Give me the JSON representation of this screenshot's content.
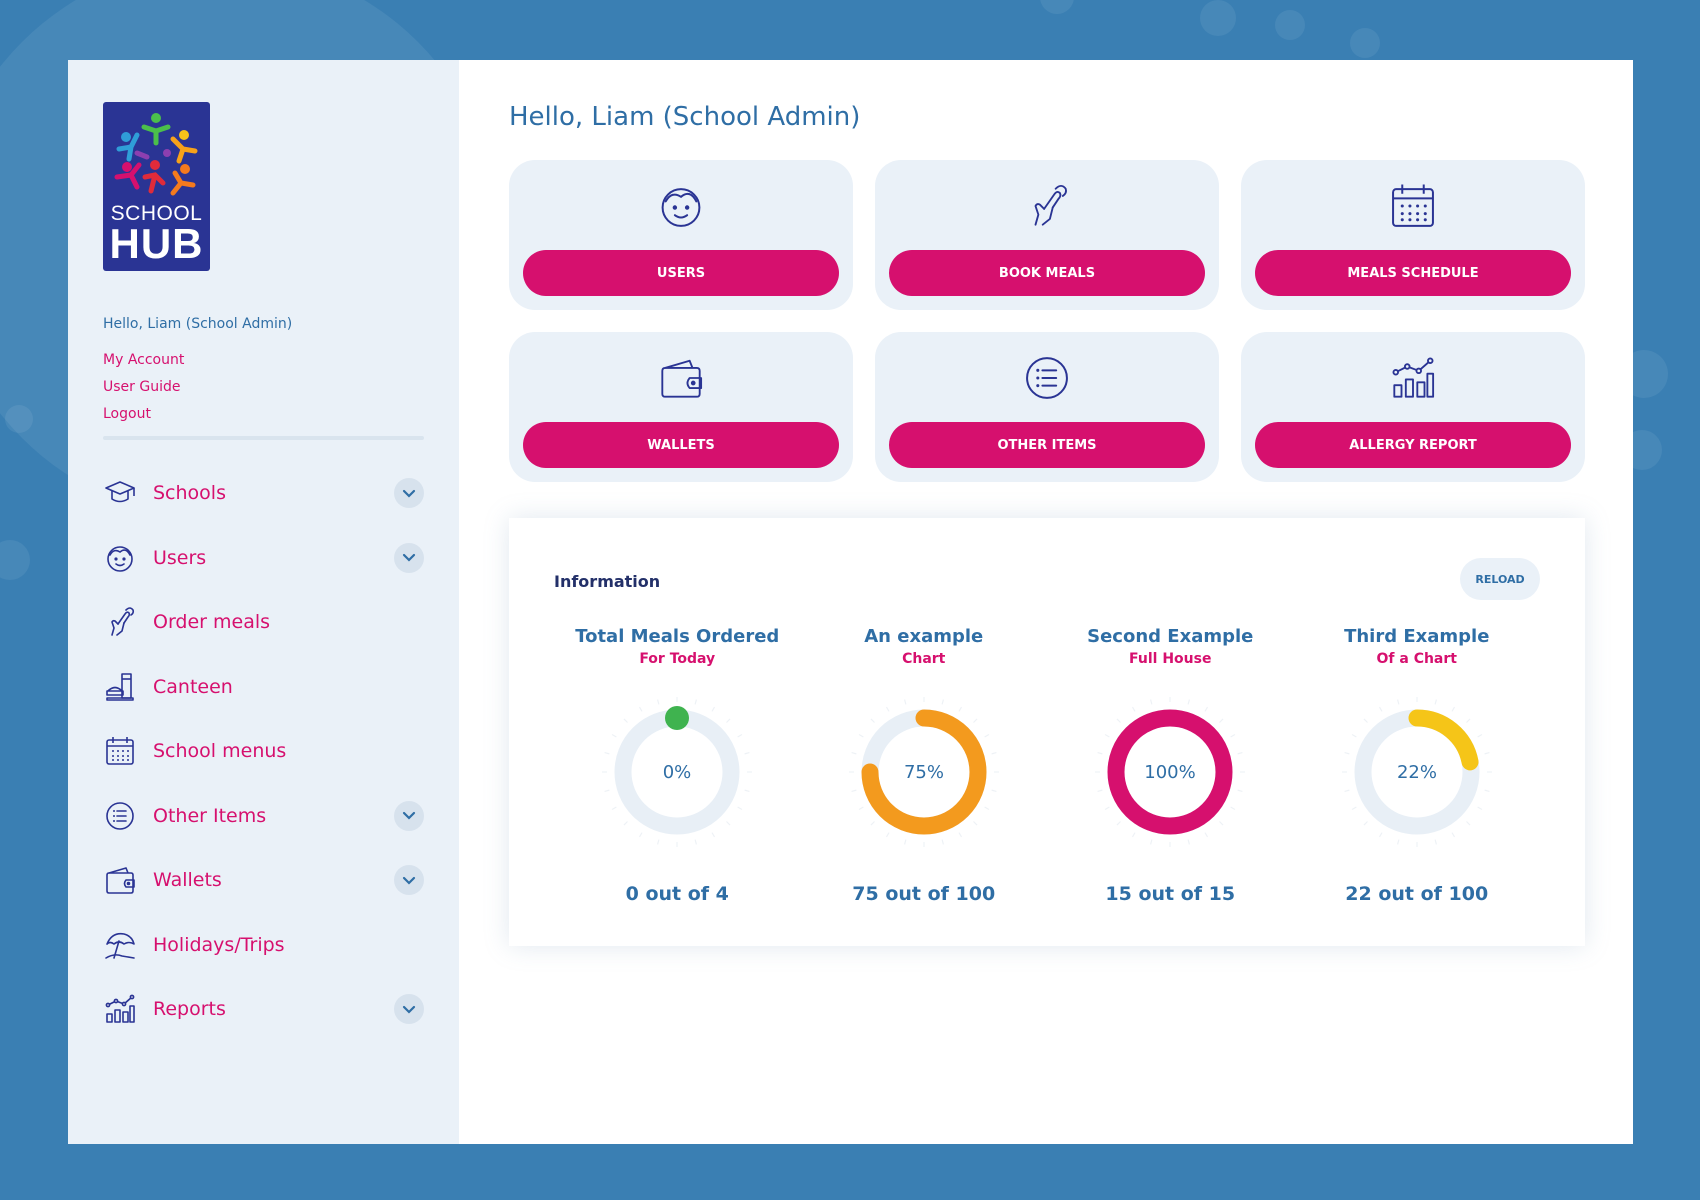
{
  "brand": {
    "logo_line1": "SCHOOL",
    "logo_line2": "HUB"
  },
  "sidebar": {
    "greeting": "Hello, Liam (School Admin)",
    "account_links": [
      {
        "label": "My Account"
      },
      {
        "label": "User Guide"
      },
      {
        "label": "Logout"
      }
    ],
    "nav": [
      {
        "label": "Schools",
        "icon": "graduation-cap-icon",
        "has_chevron": true
      },
      {
        "label": "Users",
        "icon": "user-face-icon",
        "has_chevron": true
      },
      {
        "label": "Order meals",
        "icon": "pointing-hand-icon",
        "has_chevron": false
      },
      {
        "label": "Canteen",
        "icon": "canteen-icon",
        "has_chevron": false
      },
      {
        "label": "School menus",
        "icon": "calendar-icon",
        "has_chevron": false
      },
      {
        "label": "Other Items",
        "icon": "list-icon",
        "has_chevron": true
      },
      {
        "label": "Wallets",
        "icon": "wallet-icon",
        "has_chevron": true
      },
      {
        "label": "Holidays/Trips",
        "icon": "beach-umbrella-icon",
        "has_chevron": false
      },
      {
        "label": "Reports",
        "icon": "bar-chart-icon",
        "has_chevron": true
      }
    ]
  },
  "main": {
    "title": "Hello, Liam (School Admin)",
    "tiles": [
      {
        "label": "USERS",
        "icon": "user-face-icon"
      },
      {
        "label": "BOOK MEALS",
        "icon": "pointing-hand-icon"
      },
      {
        "label": "MEALS SCHEDULE",
        "icon": "calendar-icon"
      },
      {
        "label": "WALLETS",
        "icon": "wallet-icon"
      },
      {
        "label": "OTHER ITEMS",
        "icon": "list-icon"
      },
      {
        "label": "ALLERGY REPORT",
        "icon": "bar-chart-icon"
      }
    ]
  },
  "info": {
    "title": "Information",
    "reload_label": "RELOAD"
  },
  "colors": {
    "accent": "#d6106e",
    "primary": "#2f6ea5",
    "navy": "#2a3494",
    "track": "#e8eff6"
  },
  "chart_data": [
    {
      "type": "pie",
      "title": "Total Meals Ordered",
      "subtitle": "For Today",
      "value": 0,
      "max": 4,
      "percent_label": "0%",
      "count_label": "0 out of 4",
      "color": "#3fb34f"
    },
    {
      "type": "pie",
      "title": "An example",
      "subtitle": "Chart",
      "value": 75,
      "max": 100,
      "percent_label": "75%",
      "count_label": "75 out of 100",
      "color": "#f39a1e"
    },
    {
      "type": "pie",
      "title": "Second Example",
      "subtitle": "Full House",
      "value": 15,
      "max": 15,
      "percent_label": "100%",
      "count_label": "15 out of 15",
      "color": "#d6106e"
    },
    {
      "type": "pie",
      "title": "Third Example",
      "subtitle": "Of a Chart",
      "value": 22,
      "max": 100,
      "percent_label": "22%",
      "count_label": "22 out of 100",
      "color": "#f5c518"
    }
  ]
}
